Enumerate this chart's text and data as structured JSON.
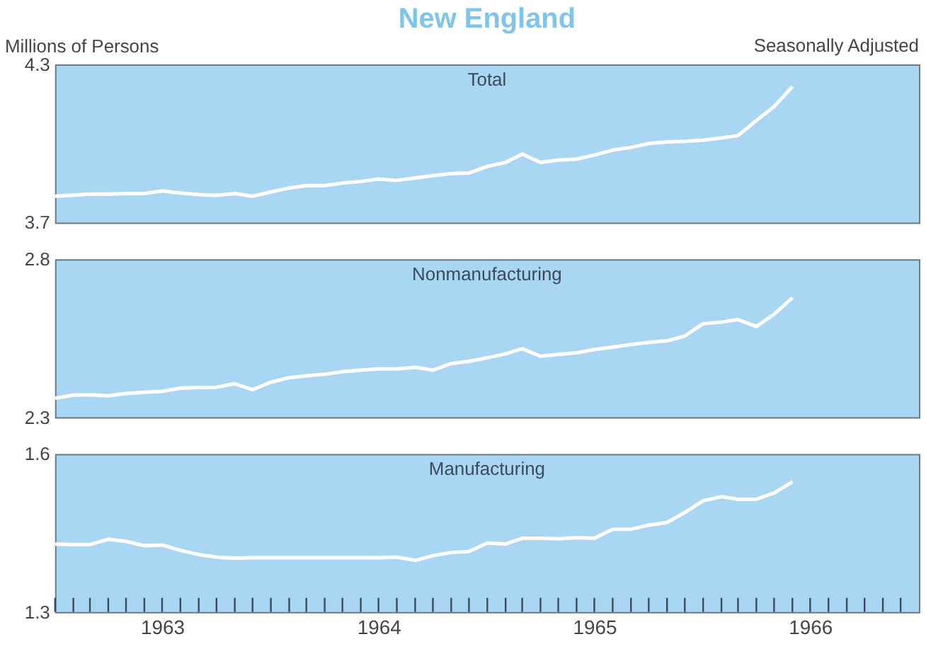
{
  "chart_data": [
    {
      "type": "line",
      "title": "Total",
      "ylabel": "Millions of Persons",
      "annotations": [
        "New England",
        "Seasonally Adjusted"
      ],
      "color": "#ffffff",
      "tick_labels": "y",
      "x": [
        "1963-01",
        "1963-02",
        "1963-03",
        "1963-04",
        "1963-05",
        "1963-06",
        "1963-07",
        "1963-08",
        "1963-09",
        "1963-10",
        "1963-11",
        "1963-12",
        "1964-01",
        "1964-02",
        "1964-03",
        "1964-04",
        "1964-05",
        "1964-06",
        "1964-07",
        "1964-08",
        "1964-09",
        "1964-10",
        "1964-11",
        "1964-12",
        "1965-01",
        "1965-02",
        "1965-03",
        "1965-04",
        "1965-05",
        "1965-06",
        "1965-07",
        "1965-08",
        "1965-09",
        "1965-10",
        "1965-11",
        "1965-12",
        "1966-01",
        "1966-02",
        "1966-03",
        "1966-04",
        "1966-05",
        "1966-06"
      ],
      "values": [
        3.8,
        3.804,
        3.808,
        3.808,
        3.81,
        3.81,
        3.82,
        3.812,
        3.806,
        3.803,
        3.81,
        3.8,
        3.816,
        3.831,
        3.84,
        3.84,
        3.85,
        3.856,
        3.865,
        3.86,
        3.869,
        3.878,
        3.886,
        3.888,
        3.913,
        3.928,
        3.96,
        3.928,
        3.937,
        3.941,
        3.956,
        3.975,
        3.985,
        4.0,
        4.006,
        4.008,
        4.013,
        4.021,
        4.03,
        4.087,
        4.14,
        4.216
      ],
      "xlim": [
        "1963-01",
        "1967-01"
      ],
      "ylim": [
        3.7,
        4.3
      ],
      "yticks": [
        3.7,
        4.3
      ],
      "grid": false
    },
    {
      "type": "line",
      "title": "Nonmanufacturing",
      "color": "#ffffff",
      "tick_labels": "y",
      "x": [
        "1963-01",
        "1963-02",
        "1963-03",
        "1963-04",
        "1963-05",
        "1963-06",
        "1963-07",
        "1963-08",
        "1963-09",
        "1963-10",
        "1963-11",
        "1963-12",
        "1964-01",
        "1964-02",
        "1964-03",
        "1964-04",
        "1964-05",
        "1964-06",
        "1964-07",
        "1964-08",
        "1964-09",
        "1964-10",
        "1964-11",
        "1964-12",
        "1965-01",
        "1965-02",
        "1965-03",
        "1965-04",
        "1965-05",
        "1965-06",
        "1965-07",
        "1965-08",
        "1965-09",
        "1965-10",
        "1965-11",
        "1965-12",
        "1966-01",
        "1966-02",
        "1966-03",
        "1966-04",
        "1966-05",
        "1966-06"
      ],
      "values": [
        2.36,
        2.37,
        2.371,
        2.368,
        2.375,
        2.379,
        2.382,
        2.392,
        2.394,
        2.395,
        2.406,
        2.387,
        2.411,
        2.425,
        2.431,
        2.436,
        2.444,
        2.449,
        2.453,
        2.453,
        2.458,
        2.449,
        2.47,
        2.477,
        2.488,
        2.501,
        2.517,
        2.493,
        2.499,
        2.504,
        2.514,
        2.522,
        2.53,
        2.537,
        2.542,
        2.557,
        2.596,
        2.601,
        2.609,
        2.587,
        2.626,
        2.678
      ],
      "xlim": [
        "1963-01",
        "1967-01"
      ],
      "ylim": [
        2.3,
        2.8
      ],
      "yticks": [
        2.3,
        2.8
      ],
      "grid": false
    },
    {
      "type": "line",
      "title": "Manufacturing",
      "color": "#ffffff",
      "x": [
        "1963-01",
        "1963-02",
        "1963-03",
        "1963-04",
        "1963-05",
        "1963-06",
        "1963-07",
        "1963-08",
        "1963-09",
        "1963-10",
        "1963-11",
        "1963-12",
        "1964-01",
        "1964-02",
        "1964-03",
        "1964-04",
        "1964-05",
        "1964-06",
        "1964-07",
        "1964-08",
        "1964-09",
        "1964-10",
        "1964-11",
        "1964-12",
        "1965-01",
        "1965-02",
        "1965-03",
        "1965-04",
        "1965-05",
        "1965-06",
        "1965-07",
        "1965-08",
        "1965-09",
        "1965-10",
        "1965-11",
        "1965-12",
        "1966-01",
        "1966-02",
        "1966-03",
        "1966-04",
        "1966-05",
        "1966-06"
      ],
      "values": [
        1.429,
        1.428,
        1.428,
        1.438,
        1.434,
        1.426,
        1.427,
        1.417,
        1.409,
        1.404,
        1.402,
        1.403,
        1.403,
        1.403,
        1.403,
        1.403,
        1.403,
        1.403,
        1.403,
        1.404,
        1.398,
        1.407,
        1.413,
        1.415,
        1.431,
        1.429,
        1.44,
        1.44,
        1.439,
        1.441,
        1.44,
        1.457,
        1.457,
        1.465,
        1.47,
        1.489,
        1.511,
        1.519,
        1.514,
        1.514,
        1.526,
        1.547
      ],
      "xlim": [
        "1963-01",
        "1967-01"
      ],
      "ylim": [
        1.3,
        1.6
      ],
      "yticks": [
        1.3,
        1.6
      ],
      "grid": false,
      "xticks": [
        {
          "value": "1963-01",
          "label": null
        },
        {
          "value": "1963-02",
          "label": null
        },
        {
          "value": "1963-03",
          "label": null
        },
        {
          "value": "1963-04",
          "label": null
        },
        {
          "value": "1963-05",
          "label": null
        },
        {
          "value": "1963-06",
          "label": null
        },
        {
          "value": "1963-07",
          "label": "1963"
        },
        {
          "value": "1963-08",
          "label": null
        },
        {
          "value": "1963-09",
          "label": null
        },
        {
          "value": "1963-10",
          "label": null
        },
        {
          "value": "1963-11",
          "label": null
        },
        {
          "value": "1963-12",
          "label": null
        },
        {
          "value": "1964-01",
          "label": null
        },
        {
          "value": "1964-02",
          "label": null
        },
        {
          "value": "1964-03",
          "label": null
        },
        {
          "value": "1964-04",
          "label": null
        },
        {
          "value": "1964-05",
          "label": null
        },
        {
          "value": "1964-06",
          "label": null
        },
        {
          "value": "1964-07",
          "label": "1964"
        },
        {
          "value": "1964-08",
          "label": null
        },
        {
          "value": "1964-09",
          "label": null
        },
        {
          "value": "1964-10",
          "label": null
        },
        {
          "value": "1964-11",
          "label": null
        },
        {
          "value": "1964-12",
          "label": null
        },
        {
          "value": "1965-01",
          "label": null
        },
        {
          "value": "1965-02",
          "label": null
        },
        {
          "value": "1965-03",
          "label": null
        },
        {
          "value": "1965-04",
          "label": null
        },
        {
          "value": "1965-05",
          "label": null
        },
        {
          "value": "1965-06",
          "label": null
        },
        {
          "value": "1965-07",
          "label": "1965"
        },
        {
          "value": "1965-08",
          "label": null
        },
        {
          "value": "1965-09",
          "label": null
        },
        {
          "value": "1965-10",
          "label": null
        },
        {
          "value": "1965-11",
          "label": null
        },
        {
          "value": "1965-12",
          "label": null
        },
        {
          "value": "1966-01",
          "label": null
        },
        {
          "value": "1966-02",
          "label": null
        },
        {
          "value": "1966-03",
          "label": null
        },
        {
          "value": "1966-04",
          "label": null
        },
        {
          "value": "1966-05",
          "label": null
        },
        {
          "value": "1966-06",
          "label": null
        },
        {
          "value": "1966-07",
          "label": "1966"
        },
        {
          "value": "1966-08",
          "label": null
        },
        {
          "value": "1966-09",
          "label": null
        },
        {
          "value": "1966-10",
          "label": null
        },
        {
          "value": "1966-11",
          "label": null
        },
        {
          "value": "1966-12",
          "label": null
        }
      ]
    }
  ]
}
